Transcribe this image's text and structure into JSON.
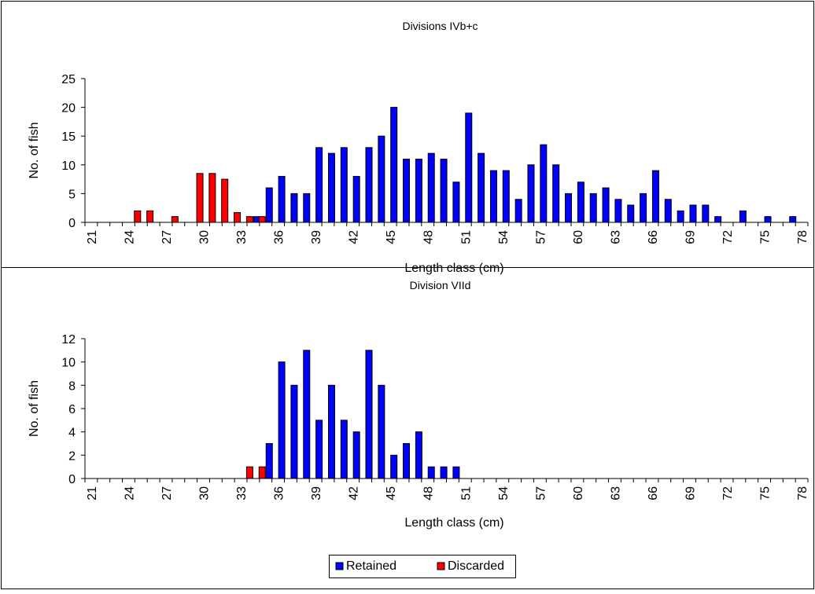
{
  "chart_data": [
    {
      "type": "bar",
      "title": "Divisions IVb+c",
      "xlabel": "Length class (cm)",
      "ylabel": "No. of fish",
      "ylim": [
        0,
        25
      ],
      "yticks": [
        0,
        5,
        10,
        15,
        20,
        25
      ],
      "x": [
        21,
        22,
        23,
        24,
        25,
        26,
        27,
        28,
        29,
        30,
        31,
        32,
        33,
        34,
        35,
        36,
        37,
        38,
        39,
        40,
        41,
        42,
        43,
        44,
        45,
        46,
        47,
        48,
        49,
        50,
        51,
        52,
        53,
        54,
        55,
        56,
        57,
        58,
        59,
        60,
        61,
        62,
        63,
        64,
        65,
        66,
        67,
        68,
        69,
        70,
        71,
        72,
        73,
        74,
        75,
        76,
        77,
        78
      ],
      "xticks": [
        "21",
        "24",
        "27",
        "30",
        "33",
        "36",
        "39",
        "42",
        "45",
        "48",
        "51",
        "54",
        "57",
        "60",
        "63",
        "66",
        "69",
        "72",
        "75",
        "78"
      ],
      "grid": false,
      "series": [
        {
          "name": "Retained",
          "color": "#0000ff",
          "values": [
            0,
            0,
            0,
            0,
            0,
            0,
            0,
            0,
            0,
            0,
            0,
            0,
            0,
            1,
            6,
            8,
            5,
            5,
            13,
            12,
            13,
            8,
            13,
            15,
            20,
            11,
            11,
            12,
            11,
            7,
            19,
            12,
            9,
            9,
            4,
            10,
            13.5,
            10,
            5,
            7,
            5,
            6,
            4,
            3,
            5,
            9,
            4,
            2,
            3,
            3,
            1,
            0,
            2,
            0,
            1,
            0,
            1,
            0
          ]
        },
        {
          "name": "Discarded",
          "color": "#ff0000",
          "values": [
            0,
            0,
            0,
            0,
            2,
            2,
            0,
            1,
            0,
            8.5,
            8.5,
            7.5,
            1.7,
            1,
            1,
            0,
            0,
            0,
            0,
            0,
            0,
            0,
            0,
            0,
            0,
            0,
            0,
            0,
            0,
            0,
            0,
            0,
            0,
            0,
            0,
            0,
            0,
            0,
            0,
            0,
            0,
            0,
            0,
            0,
            0,
            0,
            0,
            0,
            0,
            0,
            0,
            0,
            0,
            0,
            0,
            0,
            0,
            0
          ]
        }
      ]
    },
    {
      "type": "bar",
      "title": "Division VIId",
      "xlabel": "Length class (cm)",
      "ylabel": "No. of fish",
      "ylim": [
        0,
        12
      ],
      "yticks": [
        0,
        2,
        4,
        6,
        8,
        10,
        12
      ],
      "x": [
        21,
        22,
        23,
        24,
        25,
        26,
        27,
        28,
        29,
        30,
        31,
        32,
        33,
        34,
        35,
        36,
        37,
        38,
        39,
        40,
        41,
        42,
        43,
        44,
        45,
        46,
        47,
        48,
        49,
        50,
        51,
        52,
        53,
        54,
        55,
        56,
        57,
        58,
        59,
        60,
        61,
        62,
        63,
        64,
        65,
        66,
        67,
        68,
        69,
        70,
        71,
        72,
        73,
        74,
        75,
        76,
        77,
        78
      ],
      "xticks": [
        "21",
        "24",
        "27",
        "30",
        "33",
        "36",
        "39",
        "42",
        "45",
        "48",
        "51",
        "54",
        "57",
        "60",
        "63",
        "66",
        "69",
        "72",
        "75",
        "78"
      ],
      "grid": false,
      "series": [
        {
          "name": "Retained",
          "color": "#0000ff",
          "values": [
            0,
            0,
            0,
            0,
            0,
            0,
            0,
            0,
            0,
            0,
            0,
            0,
            0,
            0,
            3,
            10,
            8,
            11,
            5,
            8,
            5,
            4,
            11,
            8,
            2,
            3,
            4,
            1,
            1,
            1,
            0,
            0,
            0,
            0,
            0,
            0,
            0,
            0,
            0,
            0,
            0,
            0,
            0,
            0,
            0,
            0,
            0,
            0,
            0,
            0,
            0,
            0,
            0,
            0,
            0,
            0,
            0,
            0
          ]
        },
        {
          "name": "Discarded",
          "color": "#ff0000",
          "values": [
            0,
            0,
            0,
            0,
            0,
            0,
            0,
            0,
            0,
            0,
            0,
            0,
            0,
            1,
            1,
            0,
            0,
            0,
            0,
            0,
            0,
            0,
            0,
            0,
            0,
            0,
            0,
            0,
            0,
            0,
            0,
            0,
            0,
            0,
            0,
            0,
            0,
            0,
            0,
            0,
            0,
            0,
            0,
            0,
            0,
            0,
            0,
            0,
            0,
            0,
            0,
            0,
            0,
            0,
            0,
            0,
            0,
            0
          ]
        }
      ]
    }
  ],
  "legend": {
    "position": "bottom",
    "items": [
      {
        "label": "Retained",
        "color": "#0000ff"
      },
      {
        "label": "Discarded",
        "color": "#ff0000"
      }
    ]
  }
}
